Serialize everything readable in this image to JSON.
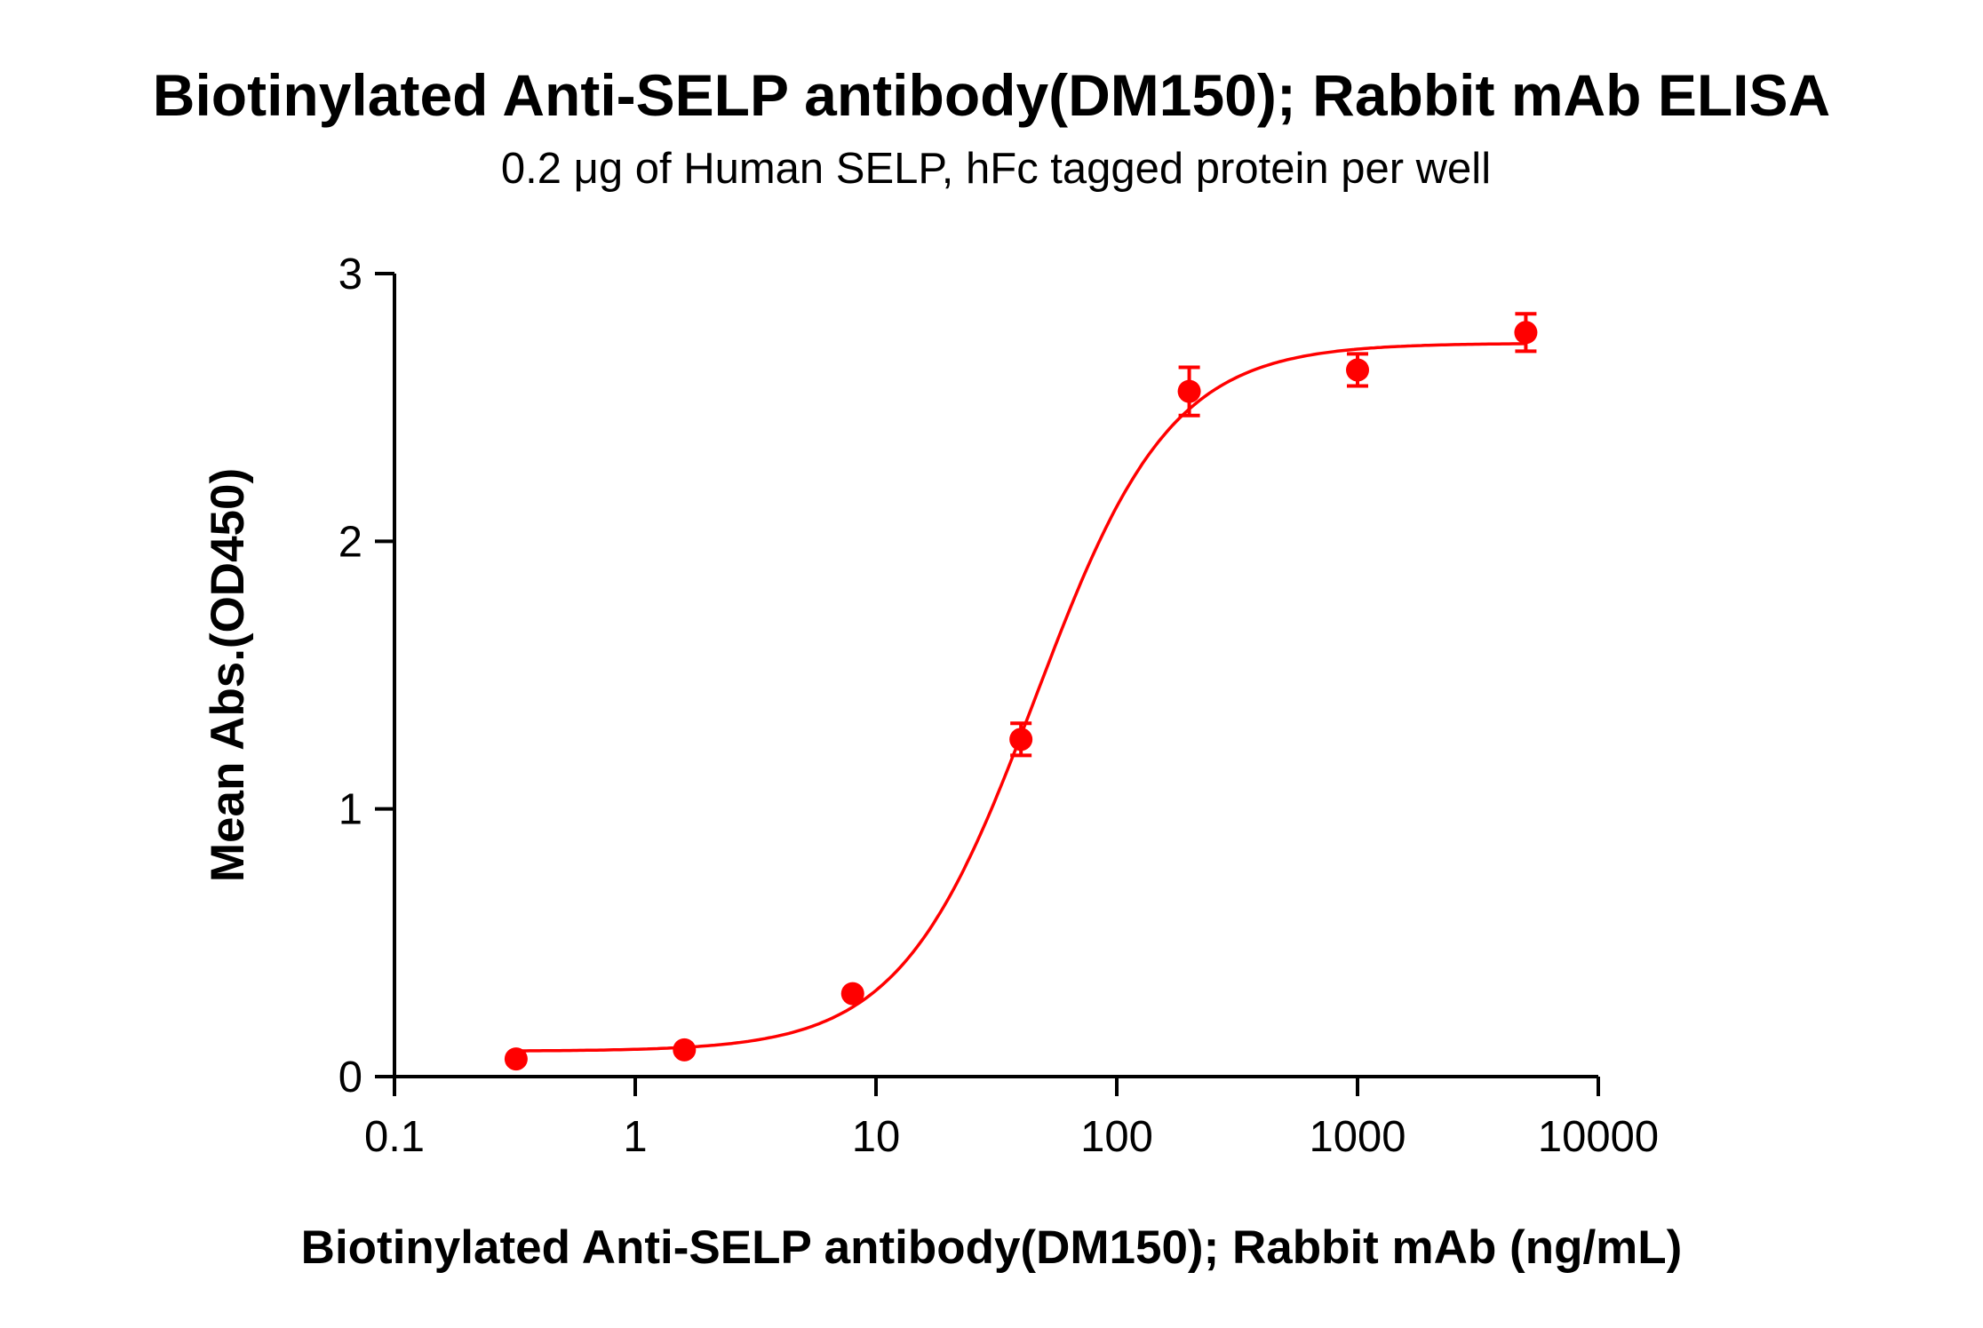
{
  "chart_data": {
    "type": "scatter",
    "title": "Biotinylated Anti-SELP antibody(DM150); Rabbit mAb ELISA",
    "subtitle": "0.2 μg of Human SELP, hFc tagged protein per well",
    "xlabel": "Biotinylated Anti-SELP antibody(DM150); Rabbit mAb (ng/mL)",
    "ylabel": "Mean Abs.(OD450)",
    "x_scale": "log",
    "xlim": [
      0.1,
      10000
    ],
    "ylim": [
      0,
      3
    ],
    "x_ticks": [
      "0.1",
      "1",
      "10",
      "100",
      "1000",
      "10000"
    ],
    "x_tick_values": [
      0.1,
      1,
      10,
      100,
      1000,
      10000
    ],
    "y_ticks": [
      "0",
      "1",
      "2",
      "3"
    ],
    "y_tick_values": [
      0,
      1,
      2,
      3
    ],
    "grid": false,
    "color": "#ff0000",
    "series": [
      {
        "x": [
          0.32,
          1.6,
          8,
          40,
          200,
          1000,
          5000
        ],
        "y": [
          0.066,
          0.1,
          0.31,
          1.26,
          2.56,
          2.64,
          2.78
        ],
        "error": [
          0,
          0,
          0,
          0.06,
          0.09,
          0.06,
          0.07
        ]
      }
    ],
    "fit": {
      "model": "4PL",
      "bottom": 0.095,
      "top": 2.74,
      "ec50": 46,
      "hill": 1.55
    }
  }
}
